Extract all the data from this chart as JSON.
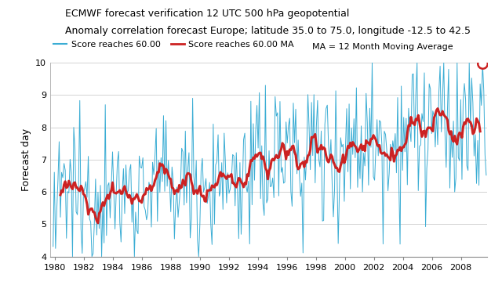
{
  "title_line1": "ECMWF forecast verification 12 UTC 500 hPa geopotential",
  "title_line2": "Anomaly correlation forecast Europe; latitude 35.0 to 75.0, longitude -12.5 to 42.5",
  "ylabel": "Forecast day",
  "xlim": [
    1979.7,
    2009.8
  ],
  "ylim": [
    4,
    10
  ],
  "yticks": [
    4,
    5,
    6,
    7,
    8,
    9,
    10
  ],
  "xticks": [
    1980,
    1982,
    1984,
    1986,
    1988,
    1990,
    1992,
    1994,
    1996,
    1998,
    2000,
    2002,
    2004,
    2006,
    2008
  ],
  "line_color": "#3BADD4",
  "ma_color": "#CC2222",
  "background_color": "#FFFFFF",
  "legend_label_line": "Score reaches 60.00",
  "legend_label_ma": "Score reaches 60.00 MA",
  "legend_label_ma_def": "MA = 12 Month Moving Average",
  "seed": 12345,
  "start_year": 1979.9,
  "end_year": 2009.75,
  "n_points": 358
}
